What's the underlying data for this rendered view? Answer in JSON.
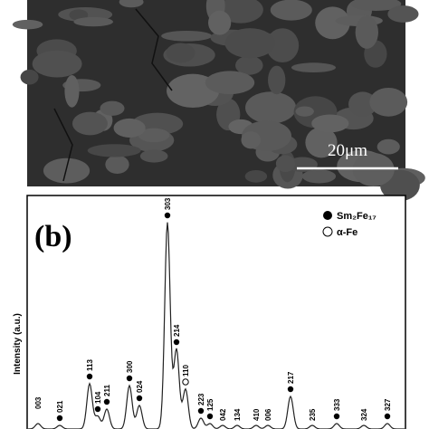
{
  "panel_a": {
    "scale_bar": "20μm"
  },
  "panel_b": {
    "label": "(b)",
    "y_axis_label": "Intensity (a.u.)",
    "legend": [
      {
        "text": "Sm₂Fe₁₇",
        "marker": "filled"
      },
      {
        "text": "α-Fe",
        "marker": "open"
      }
    ],
    "peaks": [
      "003",
      "021",
      "113",
      "104",
      "211",
      "300",
      "024",
      "303",
      "214",
      "110",
      "223",
      "125",
      "042",
      "134",
      "410",
      "006",
      "217",
      "235",
      "333",
      "324",
      "327"
    ]
  }
}
